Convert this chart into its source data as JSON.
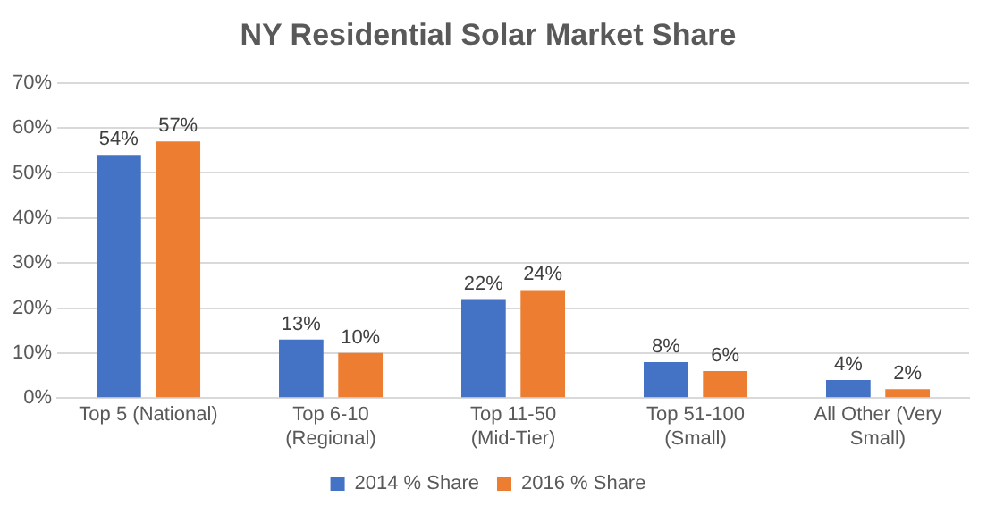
{
  "chart_data": {
    "type": "bar",
    "title": "NY Residential Solar Market Share",
    "categories": [
      "Top 5 (National)",
      "Top 6-10 (Regional)",
      "Top 11-50 (Mid-Tier)",
      "Top 51-100 (Small)",
      "All Other (Very Small)"
    ],
    "series": [
      {
        "name": "2014 % Share",
        "color": "#4472c4",
        "values": [
          54,
          13,
          22,
          8,
          4
        ],
        "value_labels": [
          "54%",
          "13%",
          "22%",
          "8%",
          "4%"
        ]
      },
      {
        "name": "2016 % Share",
        "color": "#ed7d31",
        "values": [
          57,
          10,
          24,
          6,
          2
        ],
        "value_labels": [
          "57%",
          "10%",
          "24%",
          "6%",
          "2%"
        ]
      }
    ],
    "ylim": [
      0,
      70
    ],
    "yticks": [
      {
        "value": 0,
        "label": "0%"
      },
      {
        "value": 10,
        "label": "10%"
      },
      {
        "value": 20,
        "label": "20%"
      },
      {
        "value": 30,
        "label": "30%"
      },
      {
        "value": 40,
        "label": "40%"
      },
      {
        "value": 50,
        "label": "50%"
      },
      {
        "value": 60,
        "label": "60%"
      },
      {
        "value": 70,
        "label": "70%"
      }
    ],
    "grid": "y",
    "legend": "bottom"
  }
}
